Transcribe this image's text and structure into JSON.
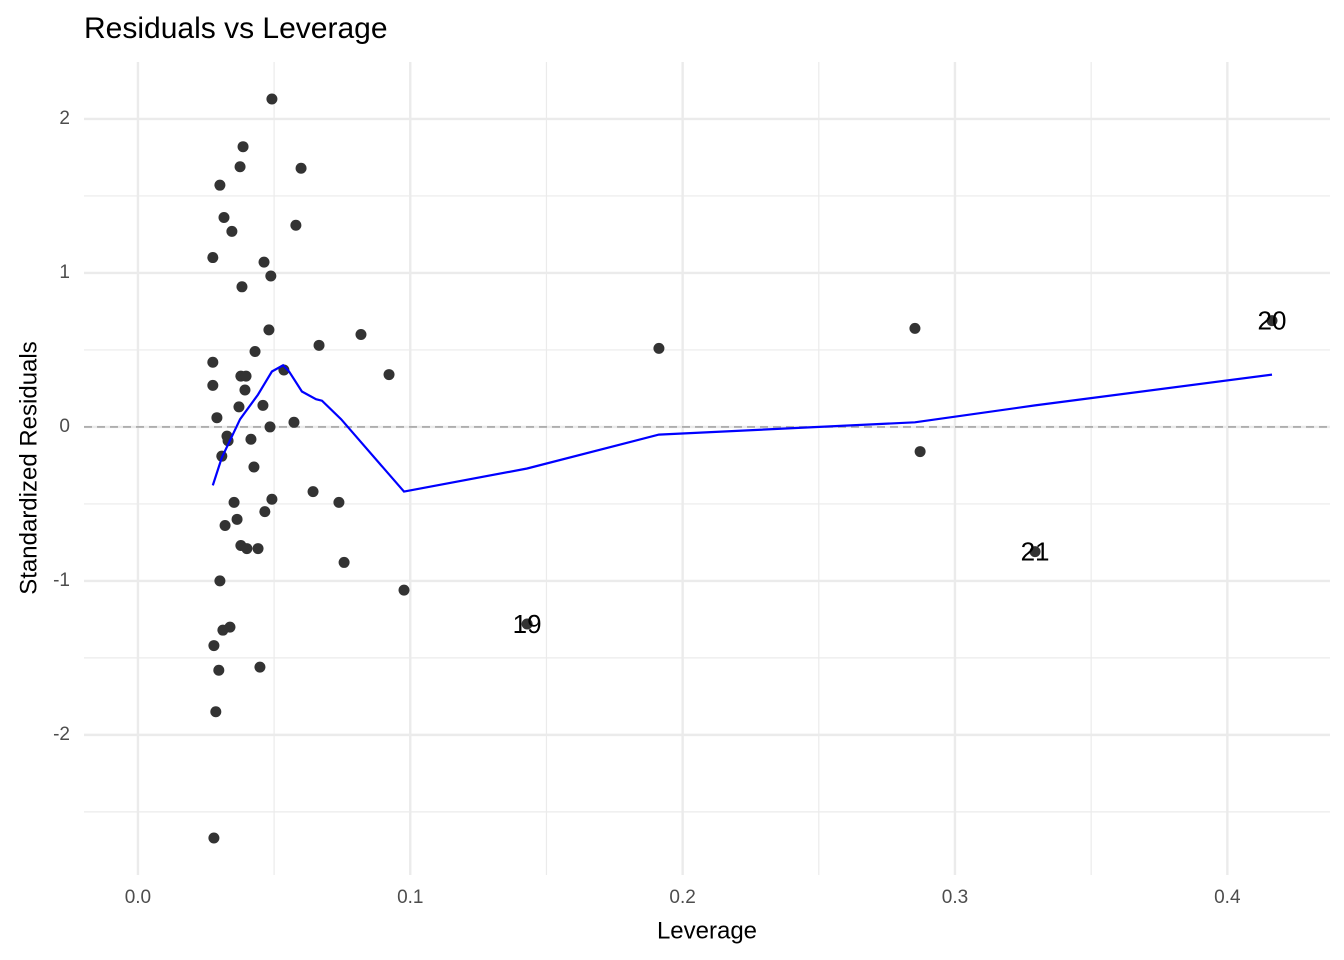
{
  "chart_data": {
    "type": "scatter",
    "title": "Residuals vs Leverage",
    "xlabel": "Leverage",
    "ylabel": "Standardized Residuals",
    "xlim": [
      -0.0198,
      0.4377
    ],
    "ylim": [
      -2.91,
      2.37
    ],
    "xticks": [
      {
        "value": 0,
        "label": "0.0"
      },
      0.1,
      0.2,
      0.3,
      0.4
    ],
    "yticks": [
      -2,
      -1,
      0,
      1,
      2
    ],
    "x_minor_ticks": [
      0.05,
      0.15,
      0.25,
      0.35
    ],
    "y_minor_ticks": [
      -2.5,
      -1.5,
      -0.5,
      0.5,
      1.5
    ],
    "grid": true,
    "reference_line": {
      "y": 0,
      "color": "#a6a6a6"
    },
    "points": {
      "color": "#333333",
      "x": [
        0.0492,
        0.0386,
        0.0599,
        0.0375,
        0.0301,
        0.0316,
        0.0345,
        0.058,
        0.0275,
        0.0463,
        0.0488,
        0.0382,
        0.0481,
        0.0819,
        0.0665,
        0.043,
        0.1913,
        0.2853,
        0.4164,
        0.0275,
        0.0922,
        0.0536,
        0.0378,
        0.0397,
        0.0275,
        0.0393,
        0.0371,
        0.0459,
        0.029,
        0.0573,
        0.0485,
        0.0327,
        0.0331,
        0.0415,
        0.0308,
        0.2872,
        0.0426,
        0.0643,
        0.0492,
        0.0738,
        0.0353,
        0.0466,
        0.0364,
        0.032,
        0.0378,
        0.04,
        0.0441,
        0.3294,
        0.0757,
        0.0301,
        0.0977,
        0.1429,
        0.0338,
        0.0312,
        0.0279,
        0.0297,
        0.0448,
        0.0286,
        0.0279
      ],
      "y": [
        2.13,
        1.82,
        1.68,
        1.69,
        1.57,
        1.36,
        1.27,
        1.31,
        1.1,
        1.07,
        0.98,
        0.91,
        0.63,
        0.6,
        0.53,
        0.49,
        0.51,
        0.64,
        0.69,
        0.42,
        0.34,
        0.37,
        0.33,
        0.33,
        0.27,
        0.24,
        0.13,
        0.14,
        0.06,
        0.03,
        0.0,
        -0.06,
        -0.09,
        -0.08,
        -0.19,
        -0.16,
        -0.26,
        -0.42,
        -0.47,
        -0.49,
        -0.49,
        -0.55,
        -0.6,
        -0.64,
        -0.77,
        -0.79,
        -0.79,
        -0.81,
        -0.88,
        -1.0,
        -1.06,
        -1.28,
        -1.3,
        -1.32,
        -1.42,
        -1.58,
        -1.56,
        -1.85,
        -2.67
      ]
    },
    "smooth": {
      "color": "#0000ff",
      "x": [
        0.0275,
        0.0308,
        0.0375,
        0.0441,
        0.0492,
        0.0533,
        0.0555,
        0.0602,
        0.0654,
        0.0676,
        0.0746,
        0.0977,
        0.1429,
        0.1913,
        0.2853,
        0.3294,
        0.4164
      ],
      "y": [
        -0.38,
        -0.2,
        0.05,
        0.21,
        0.36,
        0.4,
        0.36,
        0.23,
        0.18,
        0.17,
        0.05,
        -0.42,
        -0.27,
        -0.05,
        0.03,
        0.14,
        0.34
      ]
    },
    "point_labels": [
      {
        "text": "20",
        "x": 0.4164,
        "y": 0.69
      },
      {
        "text": "21",
        "x": 0.3294,
        "y": -0.81
      },
      {
        "text": "19",
        "x": 0.1429,
        "y": -1.28
      }
    ]
  }
}
